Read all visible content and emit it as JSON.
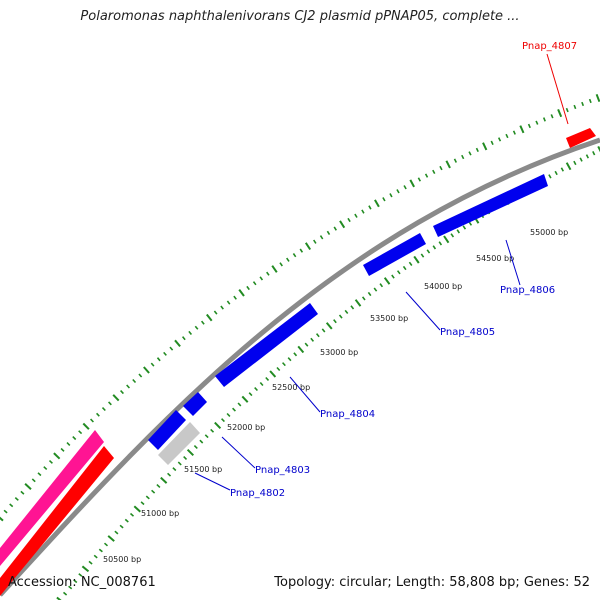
{
  "title": "Polaromonas naphthalenivorans CJ2 plasmid pPNAP05, complete ...",
  "footer": {
    "accession": "Accession: NC_008761",
    "summary": "Topology: circular; Length: 58,808 bp; Genes: 52"
  },
  "colors": {
    "backbone": "#8a8a8a",
    "tick": "#228b22",
    "gene_blue": "#0000ee",
    "gene_red": "#ff0000",
    "gene_pink": "#ff1493",
    "gene_gray": "#c8c8c8",
    "label_blue": "#0000cc",
    "label_red": "#ee0000"
  },
  "scale_labels": [
    "50500 bp",
    "51000 bp",
    "51500 bp",
    "52000 bp",
    "52500 bp",
    "53000 bp",
    "53500 bp",
    "54000 bp",
    "54500 bp",
    "55000 bp"
  ],
  "genes": [
    {
      "name": "Pnap_4802",
      "color": "gene_gray",
      "label_color": "label_blue"
    },
    {
      "name": "Pnap_4803",
      "color": "gene_blue",
      "label_color": "label_blue"
    },
    {
      "name": "Pnap_4804",
      "color": "gene_blue",
      "label_color": "label_blue"
    },
    {
      "name": "Pnap_4805",
      "color": "gene_blue",
      "label_color": "label_blue"
    },
    {
      "name": "Pnap_4806",
      "color": "gene_blue",
      "label_color": "label_blue"
    },
    {
      "name": "Pnap_4807",
      "color": "gene_red",
      "label_color": "label_red"
    }
  ]
}
